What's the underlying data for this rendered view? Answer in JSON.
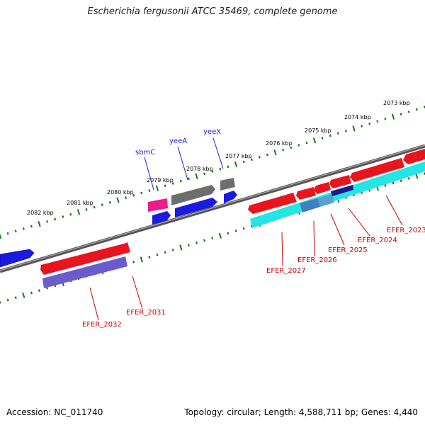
{
  "title": "Escherichia fergusonii ATCC 35469, complete genome",
  "accession_label": "Accession: NC_011740",
  "summary": "Topology: circular; Length: 4,588,711 bp; Genes: 4,440",
  "colors": {
    "backbone": "#777777",
    "ticks": "#1a7a1a",
    "red_gene": "#e8141e",
    "cyan_gene": "#22e5e5",
    "blue_gene": "#1a1ae0",
    "gray_gene": "#6e6e6e",
    "magenta_gene": "#ee1b8c",
    "purple_gene": "#6a5ccc",
    "steel_gene": "#3f7fc0",
    "navy_gene": "#1a1a8a",
    "upper_label": "#1a1ae0",
    "lower_label": "#cc0000"
  },
  "kbp_ticks": [
    "2073 kbp",
    "2074 kbp",
    "2075 kbp",
    "2076 kbp",
    "2077 kbp",
    "2078 kbp",
    "2079 kbp",
    "2080 kbp",
    "2081 kbp",
    "2082 kbp"
  ],
  "upper_gene_labels": [
    "yeeX",
    "yeeA",
    "sbmC"
  ],
  "lower_gene_labels": [
    "EFER_2023",
    "EFER_2024",
    "EFER_2025",
    "EFER_2026",
    "EFER_2027",
    "EFER_2031",
    "EFER_2032"
  ]
}
